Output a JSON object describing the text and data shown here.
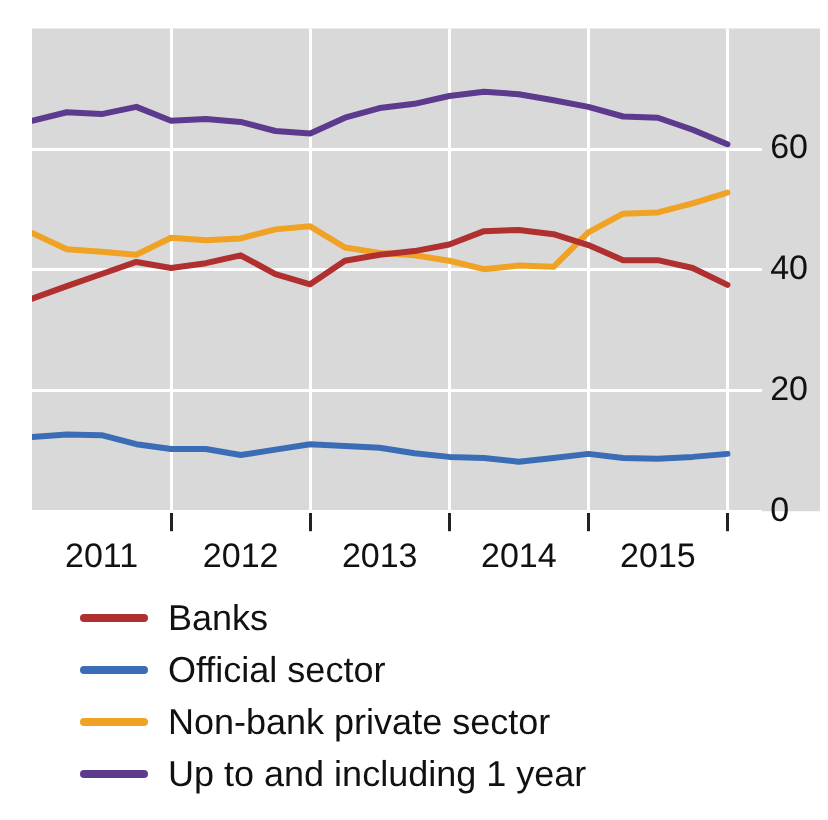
{
  "chart_data": {
    "type": "line",
    "x": [
      2011,
      2011.25,
      2011.5,
      2011.75,
      2012,
      2012.25,
      2012.5,
      2012.75,
      2013,
      2013.25,
      2013.5,
      2013.75,
      2014,
      2014.25,
      2014.5,
      2014.75,
      2015,
      2015.25,
      2015.5,
      2015.75,
      2016
    ],
    "xlim": [
      2011,
      2016.25
    ],
    "xticks": [
      {
        "value": 2011.5,
        "label": "2011"
      },
      {
        "value": 2012.5,
        "label": "2012"
      },
      {
        "value": 2013.5,
        "label": "2013"
      },
      {
        "value": 2014.5,
        "label": "2014"
      },
      {
        "value": 2015.5,
        "label": "2015"
      },
      {
        "value": 2012,
        "label": null
      },
      {
        "value": 2013,
        "label": null
      },
      {
        "value": 2014,
        "label": null
      },
      {
        "value": 2015,
        "label": null
      },
      {
        "value": 2016,
        "label": null
      }
    ],
    "ylim": [
      0,
      80
    ],
    "yticks": [
      0,
      20,
      40,
      60
    ],
    "grid": true,
    "legend": "bottom",
    "line_style": "solid",
    "marker": "none",
    "series": [
      {
        "name": "Banks",
        "color": "#b03030",
        "values": [
          35.2,
          37.3,
          39.3,
          41.3,
          40.3,
          41.1,
          42.4,
          39.3,
          37.6,
          41.5,
          42.5,
          43.1,
          44.2,
          46.4,
          46.6,
          45.9,
          44.1,
          41.6,
          41.6,
          40.3,
          37.5
        ]
      },
      {
        "name": "Official sector",
        "color": "#3a6db5",
        "values": [
          12.3,
          12.7,
          12.6,
          11.1,
          10.3,
          10.3,
          9.3,
          10.2,
          11.1,
          10.8,
          10.5,
          9.6,
          9.0,
          8.8,
          8.2,
          8.8,
          9.5,
          8.8,
          8.7,
          9.0,
          9.5
        ]
      },
      {
        "name": "Non-bank private sector",
        "color": "#f0a224",
        "values": [
          46.1,
          43.4,
          43.0,
          42.5,
          45.3,
          44.9,
          45.2,
          46.7,
          47.2,
          43.7,
          42.8,
          42.4,
          41.5,
          40.1,
          40.7,
          40.5,
          46.2,
          49.3,
          49.5,
          51.0,
          52.8
        ]
      },
      {
        "name": "Up to and including 1 year",
        "color": "#5c3a8e",
        "values": [
          64.7,
          66.1,
          65.8,
          67.0,
          64.7,
          65.0,
          64.5,
          63.0,
          62.6,
          65.2,
          66.8,
          67.5,
          68.8,
          69.5,
          69.1,
          68.1,
          67.0,
          65.4,
          65.2,
          63.2,
          60.8
        ]
      }
    ]
  }
}
